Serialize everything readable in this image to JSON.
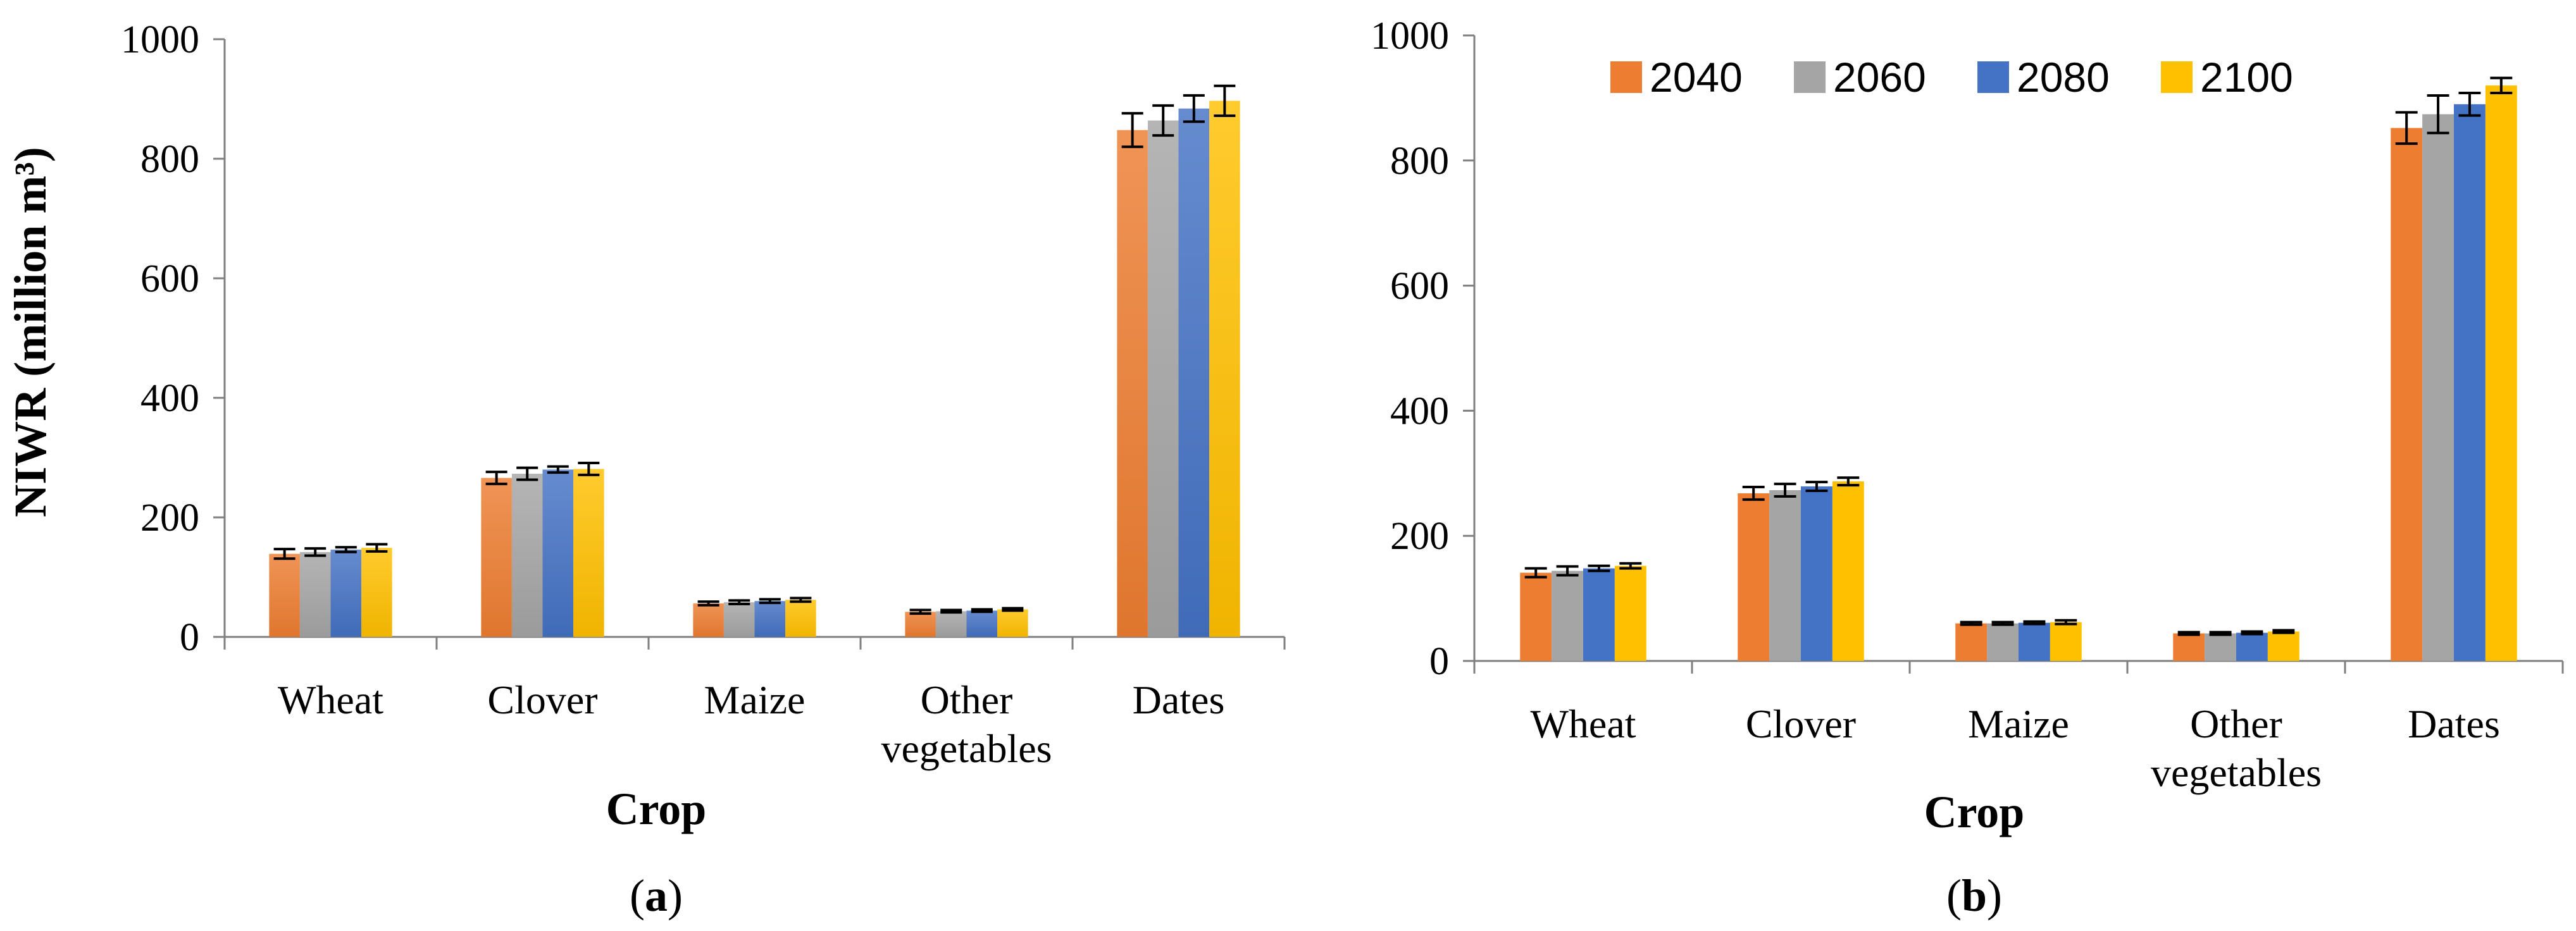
{
  "chart_data": [
    {
      "type": "bar",
      "panel_label": "(a)",
      "panel_letter": "a",
      "title": "",
      "xlabel": "Crop",
      "ylabel": "NIWR (million m³)",
      "ylim": [
        0,
        1000
      ],
      "yticks": [
        0,
        200,
        400,
        600,
        800,
        1000
      ],
      "categories": [
        [
          "Wheat"
        ],
        [
          "Clover"
        ],
        [
          "Maize"
        ],
        [
          "Other",
          "vegetables"
        ],
        [
          "Dates"
        ]
      ],
      "gradient_fill": true,
      "legend": false,
      "series": [
        {
          "name": "2040",
          "color": "#ED7D31",
          "values": [
            139,
            266,
            56,
            42,
            848
          ],
          "errors": [
            8,
            10,
            3,
            3,
            28
          ]
        },
        {
          "name": "2060",
          "color": "#A5A5A5",
          "values": [
            142,
            273,
            58,
            43,
            864
          ],
          "errors": [
            6,
            10,
            3,
            2,
            25
          ]
        },
        {
          "name": "2080",
          "color": "#4472C4",
          "values": [
            146,
            280,
            60,
            44,
            884
          ],
          "errors": [
            4,
            5,
            3,
            2,
            22
          ]
        },
        {
          "name": "2100",
          "color": "#FFC000",
          "values": [
            149,
            281,
            62,
            46,
            897
          ],
          "errors": [
            6,
            10,
            3,
            2,
            25
          ]
        }
      ]
    },
    {
      "type": "bar",
      "panel_label": "(b)",
      "panel_letter": "b",
      "title": "",
      "xlabel": "Crop",
      "ylabel": "",
      "ylim": [
        0,
        1000
      ],
      "yticks": [
        0,
        200,
        400,
        600,
        800,
        1000
      ],
      "categories": [
        [
          "Wheat"
        ],
        [
          "Clover"
        ],
        [
          "Maize"
        ],
        [
          "Other",
          "vegetables"
        ],
        [
          "Dates"
        ]
      ],
      "gradient_fill": false,
      "legend": true,
      "series": [
        {
          "name": "2040",
          "color": "#ED7D31",
          "values": [
            141,
            268,
            60,
            44,
            852
          ],
          "errors": [
            7,
            10,
            2,
            2,
            25
          ]
        },
        {
          "name": "2060",
          "color": "#A5A5A5",
          "values": [
            144,
            273,
            60,
            44,
            874
          ],
          "errors": [
            7,
            10,
            2,
            2,
            30
          ]
        },
        {
          "name": "2080",
          "color": "#4472C4",
          "values": [
            148,
            279,
            61,
            45,
            890
          ],
          "errors": [
            4,
            7,
            2,
            2,
            18
          ]
        },
        {
          "name": "2100",
          "color": "#FFC000",
          "values": [
            152,
            287,
            62,
            47,
            920
          ],
          "errors": [
            4,
            6,
            3,
            2,
            12
          ]
        }
      ]
    }
  ]
}
